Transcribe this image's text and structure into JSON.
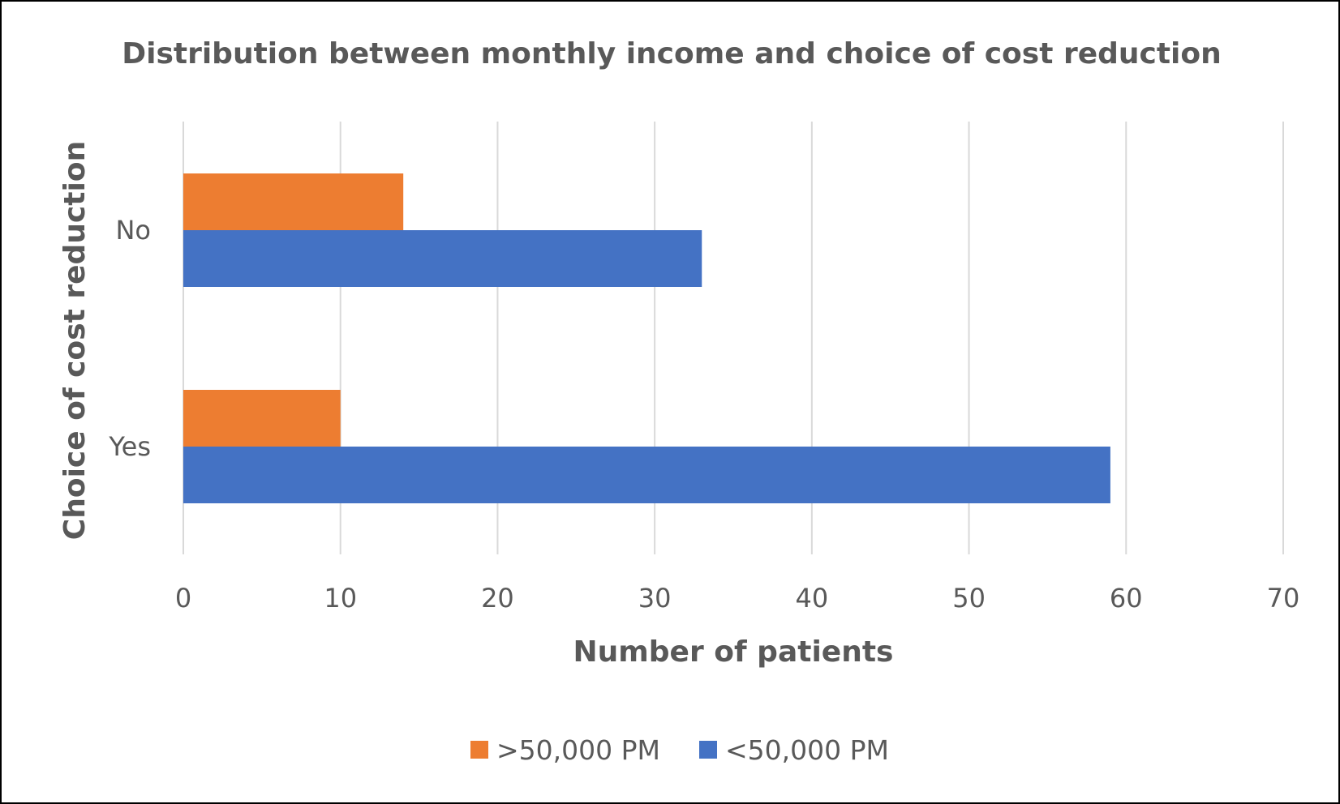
{
  "chart_data": {
    "type": "bar",
    "orientation": "horizontal",
    "title": "Distribution between monthly income and choice of cost reduction",
    "xlabel": "Number of patients",
    "ylabel": "Choice of cost reduction",
    "categories": [
      "No",
      "Yes"
    ],
    "series": [
      {
        "name": ">50,000 PM",
        "color": "#ED7D31",
        "values": [
          14,
          10
        ]
      },
      {
        "name": "<50,000 PM",
        "color": "#4472C4",
        "values": [
          33,
          59
        ]
      }
    ],
    "xlim": [
      0,
      70
    ],
    "xticks": [
      0,
      10,
      20,
      30,
      40,
      50,
      60,
      70
    ],
    "grid": "vertical",
    "legend": "bottom"
  }
}
